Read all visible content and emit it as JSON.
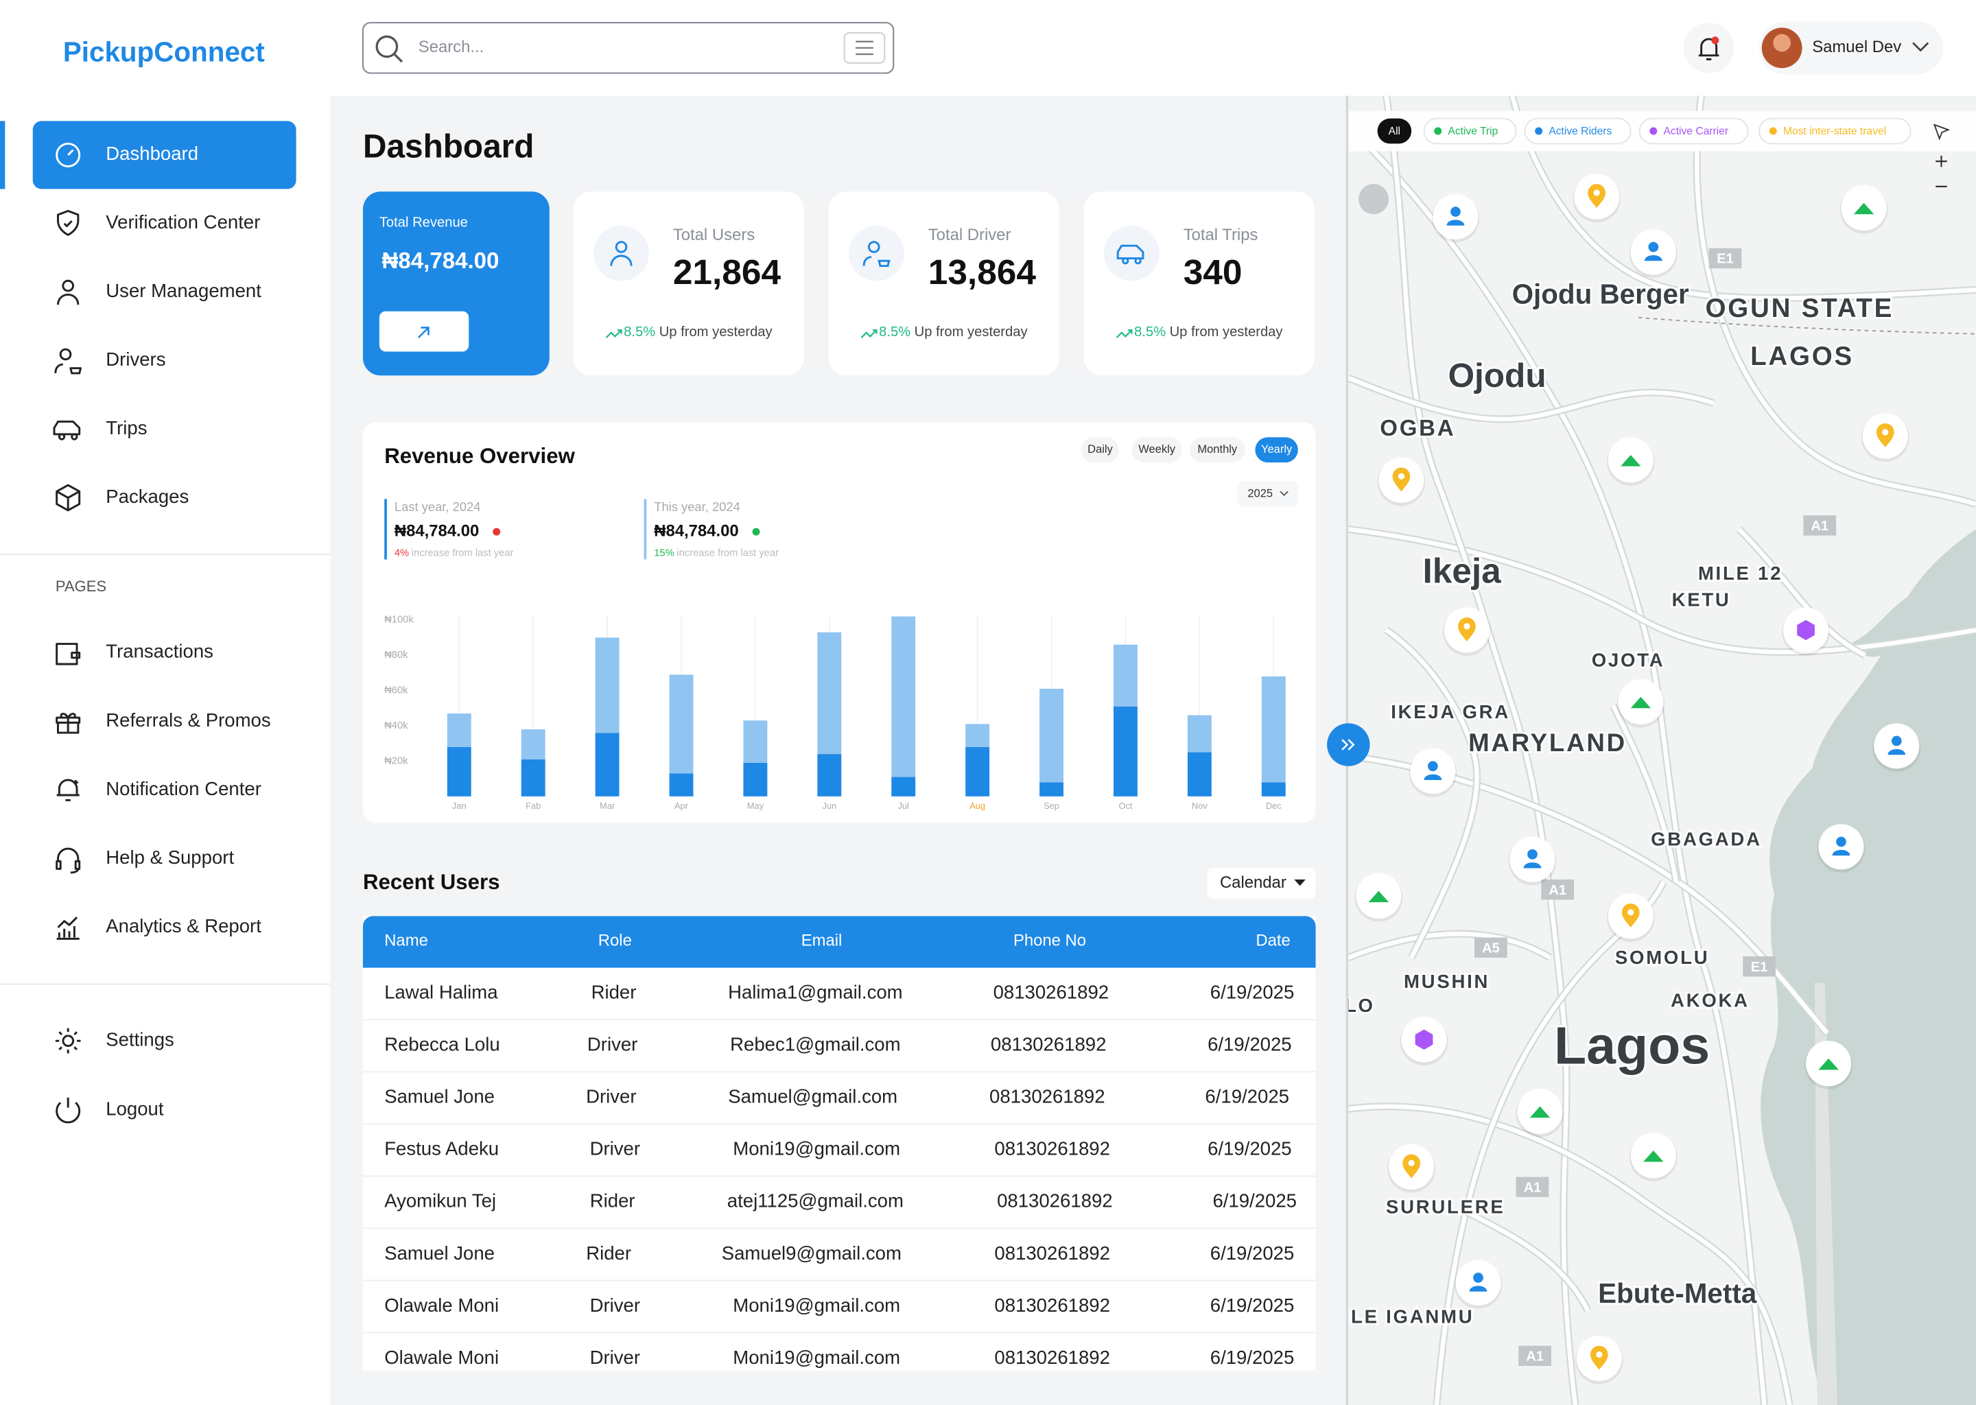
{
  "brand": "PickupConnect",
  "search_placeholder": "Search...",
  "user_name": "Samuel Dev",
  "nav": [
    "Dashboard",
    "Verification Center",
    "User Management",
    "Drivers",
    "Trips",
    "Packages"
  ],
  "pages_heading": "PAGES",
  "pages": [
    "Transactions",
    "Referrals & Promos",
    "Notification Center",
    "Help & Support",
    "Analytics & Report"
  ],
  "bottom_nav": [
    "Settings",
    "Logout"
  ],
  "page_title": "Dashboard",
  "stats": {
    "revenue_label": "Total Revenue",
    "revenue_value": "₦84,784.00",
    "cards": [
      {
        "label": "Total Users",
        "value": "21,864",
        "change": "8.5%",
        "change_text": "Up from yesterday"
      },
      {
        "label": "Total Driver",
        "value": "13,864",
        "change": "8.5%",
        "change_text": "Up from yesterday"
      },
      {
        "label": "Total Trips",
        "value": "340",
        "change": "8.5%",
        "change_text": "Up from yesterday"
      }
    ]
  },
  "chart_data": {
    "type": "bar",
    "title": "Revenue Overview",
    "periods": [
      "Daily",
      "Weekly",
      "Monthly",
      "Yearly"
    ],
    "active_period": "Yearly",
    "year": "2025",
    "summaries": [
      {
        "label": "Last year, 2024",
        "value": "₦84,784.00",
        "change": "4%",
        "change_text": "increase from last year",
        "color": "#e53935"
      },
      {
        "label": "This  year, 2024",
        "value": "₦84,784.00",
        "change": "15%",
        "change_text": "increase from last year",
        "color": "#1db954"
      }
    ],
    "categories": [
      "Jan",
      "Fab",
      "Mar",
      "Apr",
      "May",
      "Jun",
      "Jul",
      "Aug",
      "Sep",
      "Oct",
      "Nov",
      "Dec"
    ],
    "highlight": "Aug",
    "highlight_color": "#f5a623",
    "stacked": true,
    "series": [
      {
        "color": "#1e88e5",
        "values": [
          28000,
          21000,
          36000,
          13000,
          19000,
          24000,
          11000,
          28000,
          8000,
          51000,
          25000,
          8000
        ]
      },
      {
        "color": "#90c4f1",
        "values": [
          19000,
          17000,
          54000,
          56000,
          24000,
          69000,
          91000,
          13000,
          53000,
          35000,
          21000,
          60000
        ]
      }
    ],
    "ylim": [
      0,
      100000
    ],
    "yticks": [
      {
        "value": 20000,
        "label": "₦20k"
      },
      {
        "value": 40000,
        "label": "₦40k"
      },
      {
        "value": 60000,
        "label": "₦60k"
      },
      {
        "value": 80000,
        "label": "₦80k"
      },
      {
        "value": 100000,
        "label": "₦100k"
      }
    ]
  },
  "table": {
    "title": "Recent Users",
    "filter": "Calendar",
    "columns": [
      "Name",
      "Role",
      "Email",
      "Phone No",
      "Date"
    ],
    "rows": [
      [
        "Lawal Halima",
        "Rider",
        "Halima1@gmail.com",
        "08130261892",
        "6/19/2025"
      ],
      [
        "Rebecca Lolu",
        "Driver",
        "Rebec1@gmail.com",
        "08130261892",
        "6/19/2025"
      ],
      [
        "Samuel Jone",
        "Driver",
        "Samuel@gmail.com",
        "08130261892",
        "6/19/2025"
      ],
      [
        "Festus Adeku",
        "Driver",
        "Moni19@gmail.com",
        "08130261892",
        "6/19/2025"
      ],
      [
        "Ayomikun Tej",
        "Rider",
        "atej1125@gmail.com",
        "08130261892",
        "6/19/2025"
      ],
      [
        "Samuel Jone",
        "Rider",
        "Samuel9@gmail.com",
        "08130261892",
        "6/19/2025"
      ],
      [
        "Olawale Moni",
        "Driver",
        "Moni19@gmail.com",
        "08130261892",
        "6/19/2025"
      ],
      [
        "Olawale Moni",
        "Driver",
        "Moni19@gmail.com",
        "08130261892",
        "6/19/2025"
      ]
    ]
  },
  "map": {
    "filters": [
      "All",
      "Active Trip",
      "Active Riders",
      "Active Carrier",
      "Most inter-state travel"
    ],
    "places": [
      "Ojodu Berger",
      "OGUN STATE",
      "LAGOS",
      "Ojodu",
      "OGBA",
      "Ikeja",
      "MILE 12",
      "KETU",
      "OJOTA",
      "IKEJA GRA",
      "MARYLAND",
      "GBAGADA",
      "MUSHIN",
      "SOMOLU",
      "AKOKA",
      "Lagos",
      "LO",
      "SURULERE",
      "Ebute-Metta",
      "ILE IGANMU"
    ],
    "roads": [
      "E1",
      "A1",
      "A1",
      "A5",
      "E1",
      "A1",
      "A1"
    ]
  }
}
